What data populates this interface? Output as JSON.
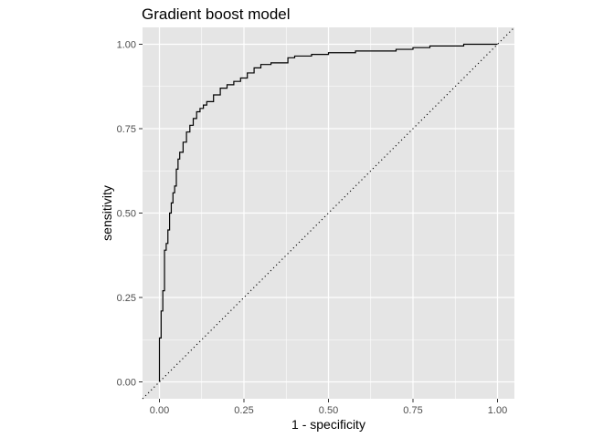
{
  "chart_data": {
    "type": "line",
    "title": "Gradient boost model",
    "xlabel": "1 - specificity",
    "ylabel": "sensitivity",
    "xlim": [
      -0.05,
      1.05
    ],
    "ylim": [
      -0.05,
      1.05
    ],
    "x_ticks": [
      0,
      0.25,
      0.5,
      0.75,
      1
    ],
    "y_ticks": [
      0,
      0.25,
      0.5,
      0.75,
      1
    ],
    "x_tick_labels": [
      "0.00",
      "0.25",
      "0.50",
      "0.75",
      "1.00"
    ],
    "y_tick_labels": [
      "0.00",
      "0.25",
      "0.50",
      "0.75",
      "1.00"
    ],
    "grid": true,
    "panel_background": "#e5e5e5",
    "grid_color": "#ffffff",
    "line_color": "#000000",
    "reference_line": {
      "from": [
        -0.05,
        -0.05
      ],
      "to": [
        1.05,
        1.05
      ],
      "style": "dotted"
    },
    "series": [
      {
        "x": [
          0,
          0,
          0.005,
          0.005,
          0.01,
          0.01,
          0.015,
          0.015,
          0.02,
          0.02,
          0.025,
          0.025,
          0.03,
          0.03,
          0.035,
          0.035,
          0.04,
          0.04,
          0.045,
          0.045,
          0.05,
          0.05,
          0.055,
          0.055,
          0.06,
          0.06,
          0.07,
          0.07,
          0.08,
          0.08,
          0.09,
          0.09,
          0.1,
          0.1,
          0.11,
          0.11,
          0.12,
          0.12,
          0.13,
          0.13,
          0.14,
          0.14,
          0.16,
          0.16,
          0.18,
          0.18,
          0.2,
          0.2,
          0.22,
          0.22,
          0.24,
          0.24,
          0.26,
          0.26,
          0.28,
          0.28,
          0.3,
          0.3,
          0.33,
          0.33,
          0.38,
          0.38,
          0.4,
          0.4,
          0.45,
          0.45,
          0.5,
          0.5,
          0.58,
          0.58,
          0.7,
          0.7,
          0.75,
          0.75,
          0.8,
          0.8,
          0.9,
          0.9,
          1.0
        ],
        "y": [
          0,
          0.13,
          0.13,
          0.21,
          0.21,
          0.27,
          0.27,
          0.39,
          0.39,
          0.41,
          0.41,
          0.45,
          0.45,
          0.5,
          0.5,
          0.53,
          0.53,
          0.56,
          0.56,
          0.58,
          0.58,
          0.63,
          0.63,
          0.66,
          0.66,
          0.68,
          0.68,
          0.71,
          0.71,
          0.74,
          0.74,
          0.76,
          0.76,
          0.78,
          0.78,
          0.8,
          0.8,
          0.81,
          0.81,
          0.82,
          0.82,
          0.83,
          0.83,
          0.85,
          0.85,
          0.87,
          0.87,
          0.88,
          0.88,
          0.89,
          0.89,
          0.9,
          0.9,
          0.915,
          0.915,
          0.93,
          0.93,
          0.94,
          0.94,
          0.945,
          0.945,
          0.96,
          0.96,
          0.965,
          0.965,
          0.97,
          0.97,
          0.975,
          0.975,
          0.98,
          0.98,
          0.985,
          0.985,
          0.99,
          0.99,
          0.995,
          0.995,
          1.0,
          1.0
        ]
      }
    ]
  }
}
